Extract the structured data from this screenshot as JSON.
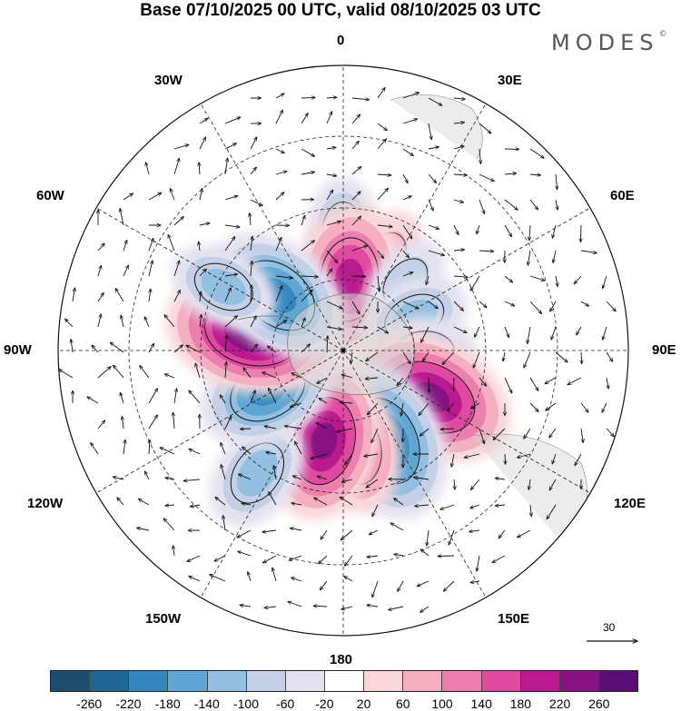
{
  "title": "Base 07/10/2025 00 UTC, valid 08/10/2025 03 UTC",
  "brand": "MODES",
  "brand_mark": "©",
  "longitude_labels": {
    "l0": "0",
    "l30e": "30E",
    "l60e": "60E",
    "l90e": "90E",
    "l120e": "120E",
    "l150e": "150E",
    "l180": "180",
    "l150w": "150W",
    "l120w": "120W",
    "l90w": "90W",
    "l60w": "60W",
    "l30w": "30W"
  },
  "reference_vector": {
    "value": "30",
    "icon": "arrow-right-icon"
  },
  "colorbar": {
    "colors": [
      "#1c4f6f",
      "#1f6596",
      "#3487be",
      "#5ea6d3",
      "#93bfe0",
      "#c3d0e8",
      "#e4e1ef",
      "#ffffff",
      "#f9d6d9",
      "#f4afc0",
      "#ec7fad",
      "#df4aa0",
      "#bb1a8f",
      "#871282",
      "#5b0f74"
    ],
    "tick_labels": [
      "-260",
      "-220",
      "-180",
      "-140",
      "-100",
      "-60",
      "-20",
      "20",
      "60",
      "100",
      "140",
      "180",
      "220",
      "260"
    ]
  },
  "map_data": {
    "projection": "south-polar-stereographic",
    "anomalies": [
      {
        "lat": -57,
        "lon": 0,
        "value": -100
      },
      {
        "lat": -62,
        "lon": 25,
        "value": 80
      },
      {
        "lat": -70,
        "lon": 5,
        "value": 200
      },
      {
        "lat": -64,
        "lon": 42,
        "value": -60
      },
      {
        "lat": -68,
        "lon": 65,
        "value": -100
      },
      {
        "lat": -67,
        "lon": 90,
        "value": -80
      },
      {
        "lat": -62,
        "lon": 118,
        "value": 240
      },
      {
        "lat": -62,
        "lon": 155,
        "value": -230
      },
      {
        "lat": -62,
        "lon": 172,
        "value": 140
      },
      {
        "lat": -64,
        "lon": -168,
        "value": 220
      },
      {
        "lat": -48,
        "lon": -145,
        "value": -120
      },
      {
        "lat": -66,
        "lon": -118,
        "value": -180
      },
      {
        "lat": -64,
        "lon": -78,
        "value": 260
      },
      {
        "lat": -66,
        "lon": -50,
        "value": -200
      },
      {
        "lat": -52,
        "lon": -62,
        "value": -100
      }
    ]
  }
}
